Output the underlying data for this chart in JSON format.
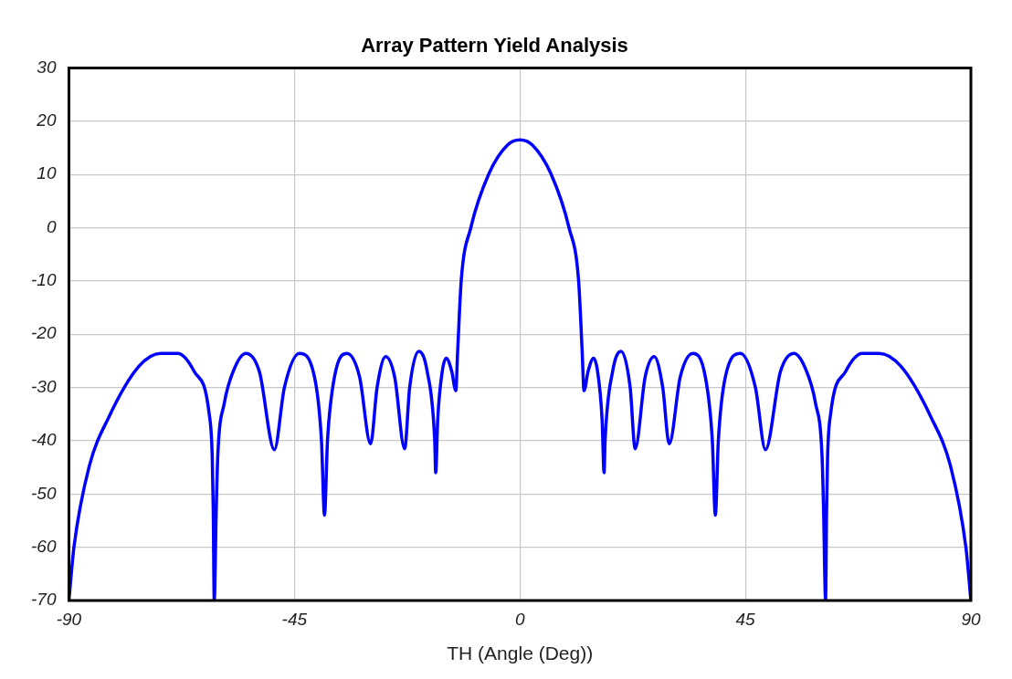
{
  "chart_data": {
    "type": "line",
    "title": "Array Pattern Yield Analysis",
    "xlabel": "TH (Angle (Deg))",
    "xlim": [
      -90,
      90
    ],
    "xticks": [
      -90,
      -45,
      0,
      45,
      90
    ],
    "ylim": [
      -70,
      30
    ],
    "yticks": [
      -70,
      -60,
      -50,
      -40,
      -30,
      -20,
      -10,
      0,
      10,
      20,
      30
    ],
    "grid": true,
    "marker": "none",
    "line_style": "solid",
    "series": [
      {
        "color": "#0000ff",
        "x": [
          -90,
          -89,
          -86,
          -82,
          -76,
          -71.7,
          -68.3,
          -65,
          -62,
          -61.4,
          -61.2,
          -61,
          -60.6,
          -60.3,
          -59,
          -57,
          -54.7,
          -52,
          -49,
          -47,
          -44,
          -41,
          -39.6,
          -39,
          -38.4,
          -37,
          -34.5,
          -32,
          -29.8,
          -28.5,
          -26.8,
          -25,
          -23,
          -22,
          -20.2,
          -18.5,
          -17,
          -16.8,
          -16.4,
          -15.5,
          -14.7,
          -13.6,
          -12.8,
          -12.4,
          -11.7,
          -9.8,
          -6.2,
          -2.5,
          0,
          2.5,
          6.2,
          9.8,
          11.7,
          12.4,
          12.8,
          13.6,
          14.7,
          15.5,
          16.4,
          16.8,
          17,
          18.5,
          20.2,
          22,
          23,
          25,
          26.8,
          28.5,
          29.8,
          32,
          34.5,
          37,
          38.4,
          39,
          39.6,
          41,
          44,
          47,
          49,
          52,
          54.7,
          57,
          59,
          60.3,
          60.6,
          61,
          61.2,
          61.4,
          62,
          65,
          68.3,
          71.7,
          76,
          82,
          86,
          89,
          90
        ],
        "values": [
          -70,
          -60,
          -45,
          -35.5,
          -26,
          -23.6,
          -23.6,
          -27,
          -35,
          -43,
          -53,
          -70,
          -53,
          -43,
          -33,
          -26.5,
          -23.6,
          -27,
          -41.7,
          -30,
          -23.6,
          -28,
          -40,
          -54,
          -40,
          -28,
          -23.6,
          -28,
          -40.6,
          -30,
          -24.2,
          -28,
          -41.5,
          -30,
          -23.2,
          -27,
          -40,
          -46,
          -36,
          -27,
          -24.5,
          -27,
          -30.6,
          -22.7,
          -9.8,
          0,
          10.1,
          15.5,
          16.5,
          15.5,
          10.1,
          0,
          -9.8,
          -22.7,
          -30.6,
          -27,
          -24.5,
          -27,
          -36,
          -46,
          -40,
          -27,
          -23.2,
          -30,
          -41.5,
          -28,
          -24.2,
          -30,
          -40.6,
          -28,
          -23.6,
          -28,
          -40,
          -54,
          -40,
          -28,
          -23.6,
          -30,
          -41.7,
          -27,
          -23.6,
          -26.5,
          -33,
          -43,
          -53,
          -70,
          -53,
          -43,
          -35,
          -27,
          -23.6,
          -23.6,
          -26,
          -35.5,
          -45,
          -60,
          -70
        ]
      }
    ]
  }
}
